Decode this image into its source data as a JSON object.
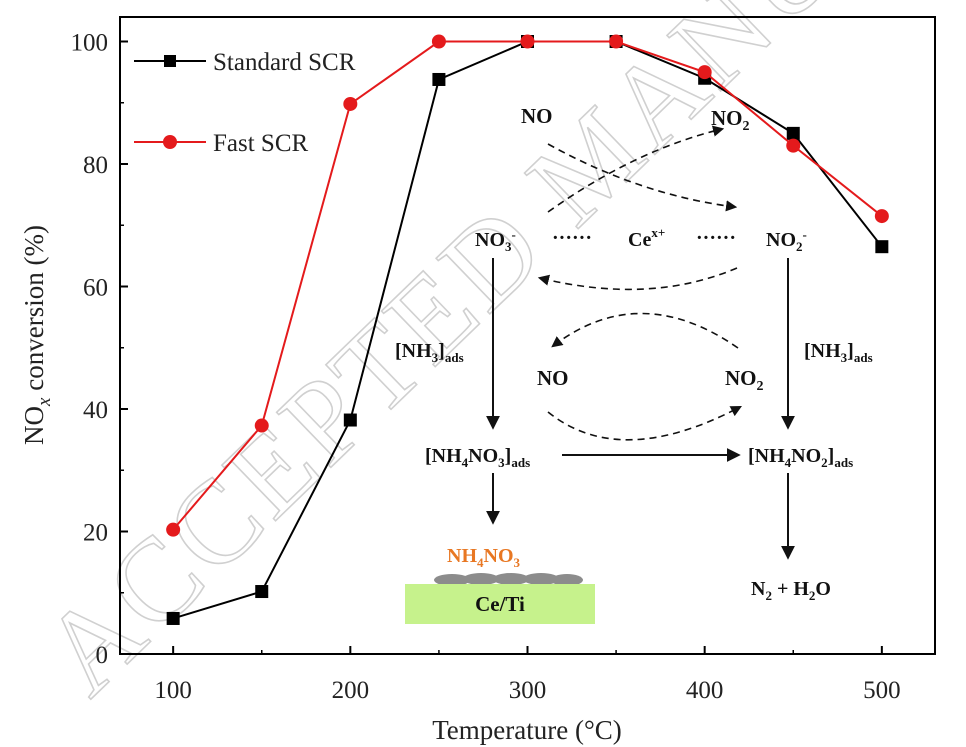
{
  "chart_data": {
    "type": "line",
    "xlabel": "Temperature (°C)",
    "ylabel": "NOx conversion (%)",
    "ylabel_main": "NO",
    "ylabel_sub": "x",
    "ylabel_rest": " conversion (%)",
    "xlim": [
      70,
      530
    ],
    "ylim": [
      0,
      104
    ],
    "x_ticks": [
      100,
      200,
      300,
      400,
      500
    ],
    "y_ticks": [
      0,
      20,
      40,
      60,
      80,
      100
    ],
    "x_tick_labels": [
      "100",
      "200",
      "300",
      "400",
      "500"
    ],
    "y_tick_labels": [
      "0",
      "20",
      "40",
      "60",
      "80",
      "100"
    ],
    "grid": false,
    "legend_position": "top-left",
    "x": [
      100,
      150,
      200,
      250,
      300,
      350,
      400,
      450,
      500
    ],
    "series": [
      {
        "name": "Standard SCR",
        "marker": "square",
        "color": "#000000",
        "values": [
          5.8,
          10.2,
          38.2,
          93.8,
          100,
          100,
          94.0,
          85.0,
          66.5
        ]
      },
      {
        "name": "Fast SCR",
        "marker": "circle",
        "color": "#e41a1c",
        "values": [
          20.3,
          37.3,
          89.8,
          100,
          100,
          100,
          95.0,
          83.0,
          71.5
        ]
      }
    ],
    "annotations": {
      "no_top": "NO",
      "no2_top": "NO2",
      "no3_minus": "NO3-",
      "ce_center": "Cex+",
      "no2_minus": "NO2-",
      "nh3_ads_left": "[NH3]ads",
      "nh3_ads_right": "[NH3]ads",
      "no_mid": "NO",
      "no2_mid": "NO2",
      "nh4no3_ads": "[NH4NO3]ads",
      "nh4no2_ads": "[NH4NO2]ads",
      "nh4no3_deposit": "NH4NO3",
      "support": "Ce/Ti",
      "products": "N2 + H2O"
    },
    "watermark": "ACCEPTED MANUSCRIPT"
  },
  "colors": {
    "standard": "#000000",
    "fast": "#e41a1c",
    "deposit_label": "#e87722",
    "support_fill": "#c6f28c",
    "particle_fill": "#8c8c8c"
  }
}
